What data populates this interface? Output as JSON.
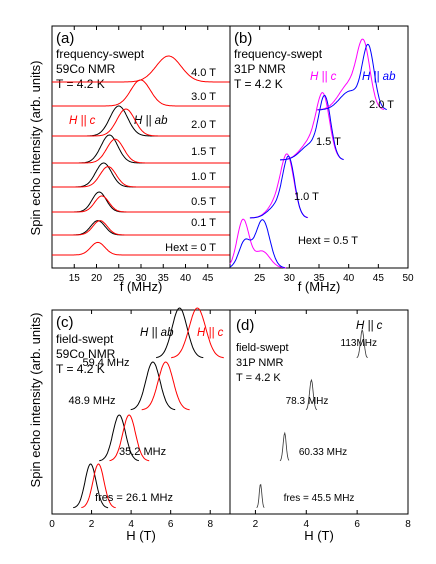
{
  "colors": {
    "ab": "#000000",
    "c": "#ff0000",
    "magenta": "#ff00ff",
    "blue": "#0000ff",
    "frame": "#000000"
  },
  "ylabel": "Spin echo intensity (arb. units)",
  "chart_data": [
    {
      "panel": "(a)",
      "type": "line",
      "text_lines": [
        "frequency-swept",
        "59Co NMR",
        "T = 4.2 K"
      ],
      "xlabel": "f (MHz)",
      "xlim": [
        10,
        50
      ],
      "xticks": [
        15,
        20,
        25,
        30,
        35,
        40,
        45
      ],
      "legend": {
        "c": "H || c",
        "ab": "H || ab"
      },
      "traces": [
        {
          "field": "0 T",
          "label": "Hext = 0 T",
          "series": [
            {
              "orient": "c",
              "peaks": [
                [
                  20.3,
                  1.6,
                  0.9
                ]
              ]
            }
          ]
        },
        {
          "field": "0.1 T",
          "label": "0.1 T",
          "series": [
            {
              "orient": "ab",
              "peaks": [
                [
                  20.3,
                  1.6,
                  0.8
                ]
              ]
            },
            {
              "orient": "c",
              "peaks": [
                [
                  20.8,
                  1.6,
                  0.8
                ]
              ]
            }
          ]
        },
        {
          "field": "0.5 T",
          "label": "0.5 T",
          "series": [
            {
              "orient": "ab",
              "peaks": [
                [
                  20.6,
                  1.6,
                  1.0
                ]
              ]
            },
            {
              "orient": "c",
              "peaks": [
                [
                  21.2,
                  1.6,
                  0.8
                ]
              ]
            }
          ]
        },
        {
          "field": "1.0 T",
          "label": "1.0 T",
          "series": [
            {
              "orient": "ab",
              "peaks": [
                [
                  21.6,
                  1.8,
                  1.0
                ]
              ]
            },
            {
              "orient": "c",
              "peaks": [
                [
                  22.6,
                  1.8,
                  0.85
                ]
              ]
            }
          ]
        },
        {
          "field": "1.5 T",
          "label": "1.5 T",
          "series": [
            {
              "orient": "ab",
              "peaks": [
                [
                  22.9,
                  1.9,
                  1.0
                ]
              ]
            },
            {
              "orient": "c",
              "peaks": [
                [
                  24.2,
                  1.9,
                  0.85
                ]
              ]
            }
          ]
        },
        {
          "field": "2.0 T",
          "label": "2.0 T",
          "series": [
            {
              "orient": "ab",
              "peaks": [
                [
                  25.0,
                  2.0,
                  1.0
                ]
              ]
            },
            {
              "orient": "c",
              "peaks": [
                [
                  26.6,
                  2.0,
                  0.9
                ]
              ]
            }
          ]
        },
        {
          "field": "3.0 T",
          "label": "3.0 T",
          "series": [
            {
              "orient": "c",
              "peaks": [
                [
                  29.9,
                  2.2,
                  1.0
                ]
              ]
            }
          ]
        },
        {
          "field": "4.0 T",
          "label": "4.0 T",
          "series": [
            {
              "orient": "c",
              "peaks": [
                [
                  36.2,
                  2.8,
                  1.0
                ]
              ]
            }
          ]
        }
      ]
    },
    {
      "panel": "(b)",
      "type": "line",
      "text_lines": [
        "frequency-swept",
        "31P NMR",
        "T = 4.2 K"
      ],
      "xlabel": "f (MHz)",
      "xlim": [
        20,
        50
      ],
      "xticks": [
        25,
        30,
        35,
        40,
        45,
        50
      ],
      "legend": {
        "c": "H || c",
        "ab": "H || ab"
      },
      "traces": [
        {
          "field": "0.5 T",
          "label": "Hext = 0.5 T",
          "series": [
            {
              "orient": "c",
              "peaks": [
                [
                  22.2,
                  1.0,
                  1.0
                ],
                [
                  25.4,
                  1.3,
                  0.35
                ]
              ]
            },
            {
              "orient": "ab",
              "peaks": [
                [
                  22.5,
                  1.0,
                  0.55
                ],
                [
                  25.5,
                  1.2,
                  1.0
                ]
              ]
            }
          ]
        },
        {
          "field": "1.0 T",
          "label": "1.0 T",
          "series": [
            {
              "orient": "c",
              "peaks": [
                [
                  29.7,
                  1.1,
                  1.0
                ],
                [
                  27.8,
                  1.4,
                  0.25
                ]
              ]
            },
            {
              "orient": "ab",
              "peaks": [
                [
                  29.9,
                  1.0,
                  1.0
                ],
                [
                  27.8,
                  1.4,
                  0.2
                ]
              ]
            }
          ]
        },
        {
          "field": "1.5 T",
          "label": "1.5 T",
          "series": [
            {
              "orient": "c",
              "peaks": [
                [
                  35.7,
                  1.1,
                  1.0
                ],
                [
                  33.5,
                  1.6,
                  0.3
                ]
              ]
            },
            {
              "orient": "ab",
              "peaks": [
                [
                  36.0,
                  1.0,
                  1.0
                ],
                [
                  33.5,
                  1.6,
                  0.25
                ]
              ]
            }
          ]
        },
        {
          "field": "2.0 T",
          "label": "2.0 T",
          "series": [
            {
              "orient": "c",
              "peaks": [
                [
                  42.5,
                  1.1,
                  1.0
                ],
                [
                  40.0,
                  1.7,
                  0.4
                ]
              ]
            },
            {
              "orient": "ab",
              "peaks": [
                [
                  43.3,
                  1.0,
                  1.0
                ],
                [
                  40.2,
                  1.7,
                  0.3
                ]
              ]
            }
          ]
        }
      ]
    },
    {
      "panel": "(c)",
      "type": "line",
      "text_lines": [
        "field-swept",
        "59Co NMR",
        "T = 4.2 K"
      ],
      "xlabel": "H (T)",
      "xlim": [
        0,
        9
      ],
      "xticks": [
        0,
        2,
        4,
        6,
        8
      ],
      "legend": {
        "ab": "H || ab",
        "c": "H || c"
      },
      "traces": [
        {
          "freq": "26.1 MHz",
          "label": "fres = 26.1 MHz",
          "series": [
            {
              "orient": "ab",
              "peaks": [
                [
                  1.95,
                  0.28,
                  1.0
                ]
              ]
            },
            {
              "orient": "c",
              "peaks": [
                [
                  2.35,
                  0.28,
                  1.0
                ]
              ]
            }
          ]
        },
        {
          "freq": "35.2 MHz",
          "label": "35.2 MHz",
          "series": [
            {
              "orient": "ab",
              "peaks": [
                [
                  3.4,
                  0.32,
                  1.0
                ]
              ]
            },
            {
              "orient": "c",
              "peaks": [
                [
                  3.9,
                  0.32,
                  1.0
                ]
              ]
            }
          ]
        },
        {
          "freq": "48.9 MHz",
          "label": "48.9 MHz",
          "series": [
            {
              "orient": "ab",
              "peaks": [
                [
                  5.1,
                  0.36,
                  1.0
                ]
              ]
            },
            {
              "orient": "c",
              "peaks": [
                [
                  5.75,
                  0.38,
                  1.0
                ]
              ]
            }
          ]
        },
        {
          "freq": "59.4 MHz",
          "label": "59.4 MHz",
          "series": [
            {
              "orient": "ab",
              "peaks": [
                [
                  6.45,
                  0.38,
                  1.0
                ]
              ]
            },
            {
              "orient": "c",
              "peaks": [
                [
                  7.35,
                  0.42,
                  1.0
                ]
              ]
            }
          ]
        }
      ]
    },
    {
      "panel": "(d)",
      "type": "line",
      "text_lines": [
        "field-swept",
        "31P NMR",
        "T = 4.2 K"
      ],
      "xlabel": "H (T)",
      "xlim": [
        1,
        8
      ],
      "xticks": [
        2,
        4,
        6,
        8
      ],
      "legend": {
        "c": "H || c"
      },
      "traces": [
        {
          "freq": "45.5 MHz",
          "label": "fres = 45.5 MHz",
          "series": [
            {
              "orient": "ab",
              "peaks": [
                [
                  2.2,
                  0.05,
                  1.0
                ]
              ]
            }
          ]
        },
        {
          "freq": "60.33 MHz",
          "label": "60.33 MHz",
          "series": [
            {
              "orient": "ab",
              "peaks": [
                [
                  3.15,
                  0.06,
                  1.0
                ]
              ]
            }
          ]
        },
        {
          "freq": "78.3 MHz",
          "label": "78.3 MHz",
          "series": [
            {
              "orient": "ab",
              "peaks": [
                [
                  4.2,
                  0.07,
                  1.0
                ]
              ]
            }
          ]
        },
        {
          "freq": "113 MHz",
          "label": "113MHz",
          "series": [
            {
              "orient": "ab",
              "peaks": [
                [
                  6.2,
                  0.07,
                  1.0
                ]
              ]
            }
          ]
        }
      ]
    }
  ]
}
